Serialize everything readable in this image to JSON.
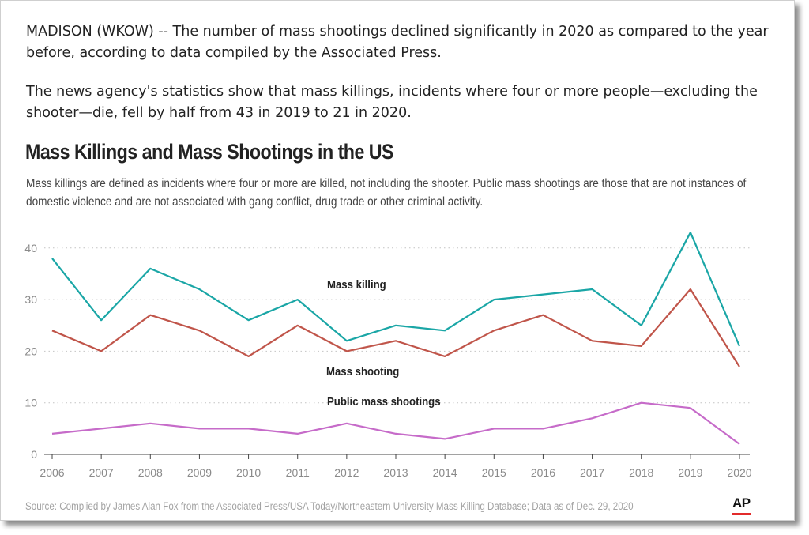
{
  "article": {
    "paragraph1": "MADISON (WKOW) -- The number of mass shootings declined significantly in 2020 as compared to the year before, according to data compiled by the Associated Press.",
    "paragraph2": "The news agency's statistics show that mass killings, incidents where four or more people—excluding the shooter—die, fell by half from 43 in 2019 to 21 in 2020."
  },
  "chart_data": {
    "type": "line",
    "title": "Mass Killings and Mass Shootings in the US",
    "subtitle": "Mass killings are defined as incidents where four or more are killed, not including the shooter. Public mass shootings are those that are not instances of domestic violence and are not associated with gang conflict, drug trade or other criminal activity.",
    "x": [
      "2006",
      "2007",
      "2008",
      "2009",
      "2010",
      "2011",
      "2012",
      "2013",
      "2014",
      "2015",
      "2016",
      "2017",
      "2018",
      "2019",
      "2020"
    ],
    "y_ticks": [
      "0",
      "10",
      "20",
      "30",
      "40"
    ],
    "ylim": [
      0,
      44
    ],
    "grid": true,
    "legend": "inline labels",
    "series": [
      {
        "name": "Mass killing",
        "color": "#1aa6a6",
        "values": [
          38,
          26,
          36,
          32,
          26,
          30,
          22,
          25,
          24,
          30,
          31,
          32,
          25,
          43,
          21
        ]
      },
      {
        "name": "Mass shooting",
        "color": "#c0554a",
        "values": [
          24,
          20,
          27,
          24,
          19,
          25,
          20,
          22,
          19,
          24,
          27,
          22,
          21,
          32,
          17
        ]
      },
      {
        "name": "Public mass shootings",
        "color": "#c66bc9",
        "values": [
          4,
          5,
          6,
          5,
          5,
          4,
          6,
          4,
          3,
          5,
          5,
          7,
          10,
          9,
          2
        ]
      }
    ],
    "source": "Source: Complied by James Alan Fox from the Associated Press/USA Today/Northeastern University Mass Killing Database; Data as of Dec. 29, 2020"
  },
  "logo": {
    "text": "AP",
    "accent_color": "#e22b2b"
  }
}
